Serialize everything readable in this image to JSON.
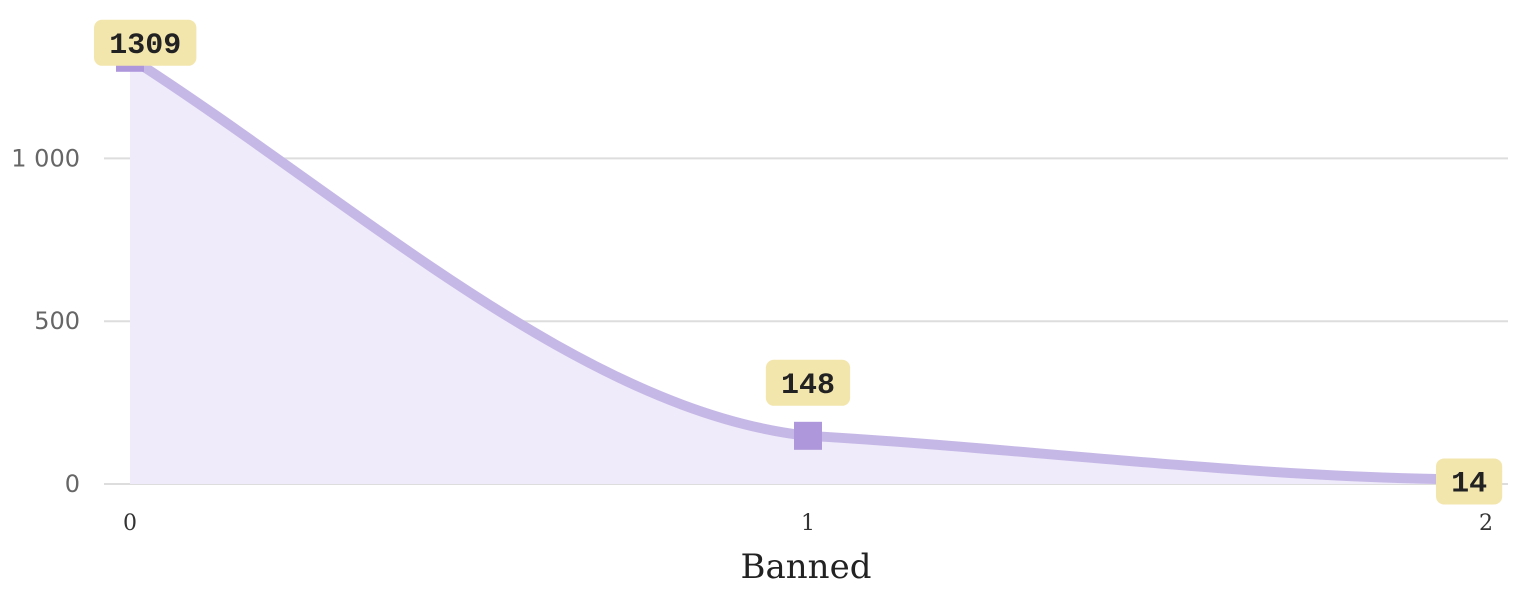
{
  "chart_data": {
    "type": "area",
    "x": [
      0,
      1,
      2
    ],
    "y": [
      1309,
      148,
      14
    ],
    "data_labels": [
      "1309",
      "148",
      "14"
    ],
    "xticks": [
      "0",
      "1",
      "2"
    ],
    "yticks": [
      0,
      500,
      1000
    ],
    "ytick_labels": [
      "0",
      "500",
      "1 000"
    ],
    "xlabel": "Banned",
    "ylabel": "",
    "title": "",
    "xlim": [
      0,
      2
    ],
    "ylim": [
      0,
      1350
    ],
    "grid": true,
    "legend": "none",
    "colors": {
      "line": "#c6b8e6",
      "fill": "#efebfa",
      "marker": "#ae97db",
      "label_bg": "#f3e6ad",
      "grid": "#dddddd"
    }
  }
}
